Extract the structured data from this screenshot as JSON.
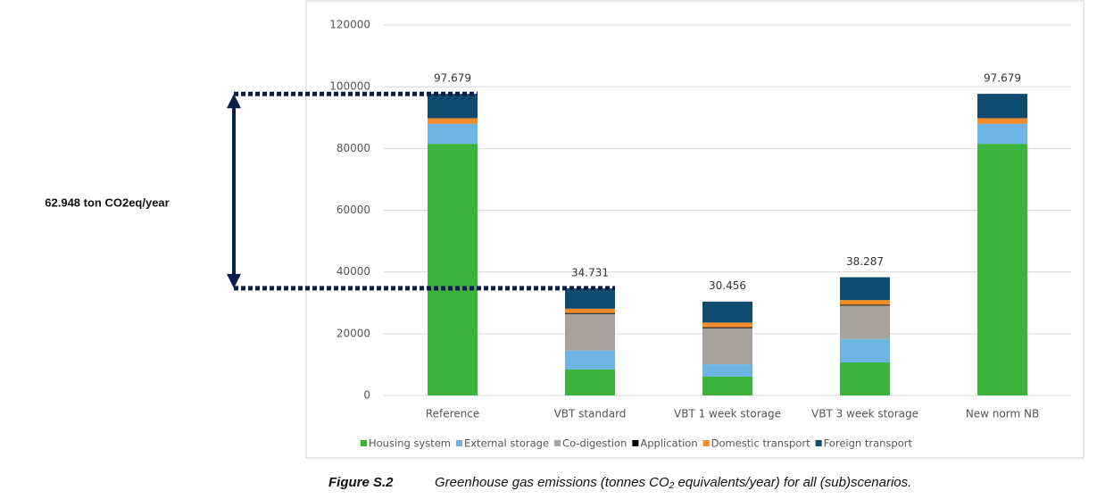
{
  "chart_data": {
    "type": "stacked_bar",
    "categories": [
      "Reference",
      "VBT standard",
      "VBT 1 week storage",
      "VBT 3 week storage",
      "New norm NB"
    ],
    "series": [
      {
        "name": "Housing system",
        "color": "#3cb43c",
        "values": [
          81500,
          8400,
          6100,
          10700,
          81500
        ]
      },
      {
        "name": "External storage",
        "color": "#6db5e5",
        "values": [
          6500,
          6100,
          4000,
          7600,
          6500
        ]
      },
      {
        "name": "Co-digestion",
        "color": "#a8a29d",
        "values": [
          0,
          11900,
          11700,
          10800,
          0
        ]
      },
      {
        "name": "Application",
        "color": "#000000",
        "values": [
          0,
          300,
          300,
          300,
          0
        ]
      },
      {
        "name": "Domestic transport",
        "color": "#f28c28",
        "values": [
          1800,
          1400,
          1500,
          1500,
          1800
        ]
      },
      {
        "name": "Foreign transport",
        "color": "#0f4c6d",
        "values": [
          7900,
          6600,
          6800,
          7400,
          7900
        ]
      }
    ],
    "totals": {
      "values": [
        97679,
        34731,
        30456,
        38287,
        97679
      ],
      "value_labels": [
        "97.679",
        "34.731",
        "30.456",
        "38.287",
        "97.679"
      ]
    },
    "ylim": [
      0,
      120000
    ],
    "yticks": [
      0,
      20000,
      40000,
      60000,
      80000,
      100000,
      120000
    ],
    "grid": true,
    "annotation": {
      "text": "62.948 ton CO2eq/year",
      "value": 62948
    },
    "caption": {
      "label": "Figure S.2",
      "text": "Greenhouse gas emissions (tonnes CO₂ equivalents/year) for all (sub)scenarios."
    }
  }
}
